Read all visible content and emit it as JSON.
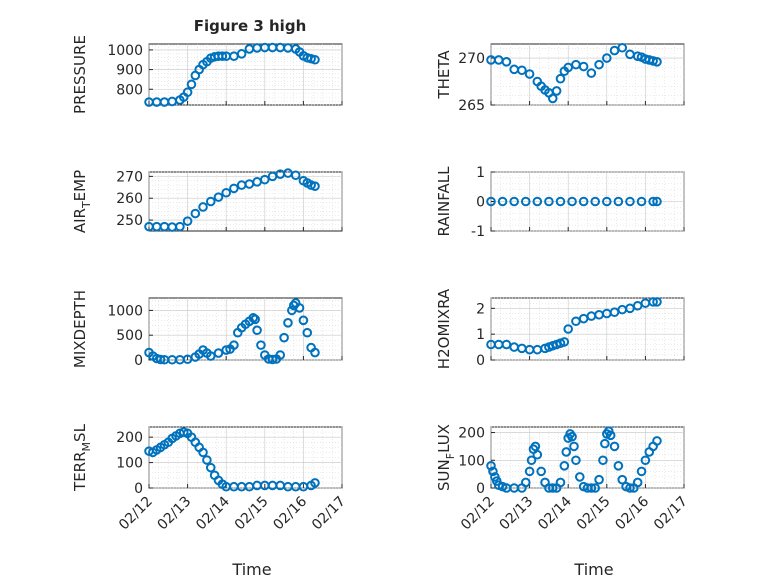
{
  "chart_data": {
    "type": "scatter",
    "title": "Figure 3 high",
    "layout": "4x2",
    "marker": "circle",
    "marker_color": "#0072BD",
    "x_ticks": [
      "02/12",
      "02/13",
      "02/14",
      "02/15",
      "02/16",
      "02/17"
    ],
    "xlim": [
      0,
      5
    ],
    "xlabel": "Time",
    "panels": [
      {
        "ylabel": "PRESSURE",
        "ylim": [
          720,
          1030
        ],
        "yticks": [
          800,
          900,
          1000
        ],
        "x": [
          0.0,
          0.2,
          0.4,
          0.6,
          0.8,
          0.9,
          1.0,
          1.1,
          1.2,
          1.3,
          1.4,
          1.5,
          1.6,
          1.7,
          1.8,
          1.9,
          2.0,
          2.2,
          2.4,
          2.6,
          2.8,
          3.0,
          3.2,
          3.4,
          3.6,
          3.8,
          3.9,
          4.0,
          4.1,
          4.2,
          4.3
        ],
        "values": [
          735,
          735,
          735,
          738,
          745,
          760,
          785,
          825,
          870,
          900,
          925,
          940,
          958,
          965,
          968,
          968,
          968,
          968,
          980,
          1005,
          1010,
          1012,
          1012,
          1012,
          1010,
          1005,
          990,
          970,
          960,
          955,
          950
        ]
      },
      {
        "ylabel": "THETA",
        "ylim": [
          265,
          271.5
        ],
        "yticks": [
          265,
          270
        ],
        "x": [
          0.0,
          0.2,
          0.4,
          0.6,
          0.8,
          1.0,
          1.2,
          1.3,
          1.4,
          1.5,
          1.6,
          1.7,
          1.8,
          1.9,
          2.0,
          2.2,
          2.4,
          2.6,
          2.8,
          3.0,
          3.2,
          3.4,
          3.6,
          3.8,
          3.9,
          4.0,
          4.1,
          4.2,
          4.3
        ],
        "values": [
          269.8,
          269.8,
          269.6,
          268.8,
          268.7,
          268.3,
          267.5,
          267.0,
          266.6,
          266.3,
          265.7,
          266.5,
          267.8,
          268.6,
          269.0,
          269.3,
          269.1,
          268.4,
          269.3,
          270.0,
          270.8,
          271.1,
          270.4,
          270.2,
          270.1,
          269.9,
          269.8,
          269.7,
          269.6
        ]
      },
      {
        "ylabel": "AIR_TEMP",
        "ylim": [
          245,
          272
        ],
        "yticks": [
          250,
          260,
          270
        ],
        "x": [
          0.0,
          0.2,
          0.4,
          0.6,
          0.8,
          1.0,
          1.2,
          1.4,
          1.6,
          1.8,
          2.0,
          2.2,
          2.4,
          2.6,
          2.8,
          3.0,
          3.2,
          3.4,
          3.6,
          3.8,
          4.0,
          4.1,
          4.2,
          4.3
        ],
        "values": [
          247,
          247,
          247,
          246.8,
          247,
          249.5,
          253,
          256,
          258.5,
          260.5,
          262.5,
          264.5,
          266,
          266.5,
          267.5,
          268.5,
          270,
          271,
          271.5,
          270.5,
          268,
          267,
          266,
          265.5
        ]
      },
      {
        "ylabel": "RAINFALL",
        "ylim": [
          -1,
          1
        ],
        "yticks": [
          -1,
          0,
          1
        ],
        "x": [
          0.0,
          0.3,
          0.6,
          0.9,
          1.2,
          1.5,
          1.8,
          2.1,
          2.4,
          2.7,
          3.0,
          3.3,
          3.6,
          3.9,
          4.2,
          4.3
        ],
        "values": [
          0,
          0,
          0,
          0,
          0,
          0,
          0,
          0,
          0,
          0,
          0,
          0,
          0,
          0,
          0,
          0
        ]
      },
      {
        "ylabel": "MIXDEPTH",
        "ylim": [
          0,
          1250
        ],
        "yticks": [
          0,
          500,
          1000
        ],
        "x": [
          0.0,
          0.1,
          0.2,
          0.3,
          0.4,
          0.6,
          0.8,
          1.0,
          1.2,
          1.3,
          1.4,
          1.5,
          1.6,
          1.8,
          2.0,
          2.1,
          2.2,
          2.3,
          2.4,
          2.5,
          2.6,
          2.7,
          2.75,
          2.8,
          2.9,
          3.0,
          3.1,
          3.2,
          3.3,
          3.4,
          3.5,
          3.6,
          3.7,
          3.75,
          3.8,
          3.9,
          4.0,
          4.1,
          4.2,
          4.3
        ],
        "values": [
          150,
          80,
          30,
          10,
          5,
          5,
          5,
          15,
          60,
          120,
          200,
          140,
          80,
          140,
          200,
          220,
          300,
          550,
          650,
          720,
          780,
          850,
          820,
          600,
          300,
          100,
          20,
          10,
          20,
          100,
          450,
          750,
          1000,
          1100,
          1150,
          1050,
          800,
          550,
          250,
          150
        ]
      },
      {
        "ylabel": "H2OMIXRA",
        "ylim": [
          0,
          2.4
        ],
        "yticks": [
          0,
          1,
          2
        ],
        "x": [
          0.0,
          0.2,
          0.4,
          0.6,
          0.8,
          1.0,
          1.2,
          1.4,
          1.5,
          1.6,
          1.7,
          1.8,
          1.9,
          2.0,
          2.2,
          2.4,
          2.6,
          2.8,
          3.0,
          3.2,
          3.4,
          3.6,
          3.8,
          4.0,
          4.2,
          4.3
        ],
        "values": [
          0.6,
          0.6,
          0.6,
          0.5,
          0.45,
          0.4,
          0.4,
          0.45,
          0.5,
          0.55,
          0.6,
          0.65,
          0.7,
          1.2,
          1.5,
          1.6,
          1.7,
          1.75,
          1.8,
          1.85,
          1.95,
          2.0,
          2.1,
          2.2,
          2.25,
          2.25
        ]
      },
      {
        "ylabel": "TERR_MSL",
        "ylim": [
          0,
          240
        ],
        "yticks": [
          0,
          100,
          200
        ],
        "x": [
          0.0,
          0.1,
          0.2,
          0.3,
          0.4,
          0.5,
          0.6,
          0.7,
          0.8,
          0.9,
          1.0,
          1.1,
          1.2,
          1.3,
          1.4,
          1.5,
          1.6,
          1.7,
          1.8,
          1.9,
          2.0,
          2.2,
          2.4,
          2.6,
          2.8,
          3.0,
          3.2,
          3.4,
          3.6,
          3.8,
          4.0,
          4.2,
          4.3
        ],
        "values": [
          145,
          140,
          150,
          160,
          170,
          180,
          195,
          205,
          215,
          220,
          215,
          200,
          180,
          160,
          140,
          110,
          80,
          50,
          30,
          15,
          5,
          5,
          5,
          5,
          10,
          10,
          10,
          10,
          5,
          5,
          5,
          10,
          20
        ]
      },
      {
        "ylabel": "SUN_FLUX",
        "ylim": [
          0,
          220
        ],
        "yticks": [
          0,
          100,
          200
        ],
        "x": [
          0.0,
          0.05,
          0.1,
          0.15,
          0.2,
          0.3,
          0.4,
          0.6,
          0.8,
          0.9,
          1.0,
          1.05,
          1.1,
          1.15,
          1.2,
          1.3,
          1.4,
          1.5,
          1.6,
          1.7,
          1.8,
          1.9,
          1.95,
          2.0,
          2.05,
          2.1,
          2.15,
          2.2,
          2.3,
          2.4,
          2.5,
          2.6,
          2.7,
          2.8,
          2.9,
          2.95,
          3.0,
          3.05,
          3.1,
          3.2,
          3.3,
          3.4,
          3.5,
          3.6,
          3.7,
          3.8,
          3.9,
          4.0,
          4.1,
          4.2,
          4.3
        ],
        "values": [
          80,
          60,
          40,
          25,
          10,
          5,
          0,
          0,
          0,
          20,
          60,
          100,
          140,
          150,
          120,
          60,
          20,
          0,
          0,
          0,
          20,
          80,
          130,
          180,
          195,
          185,
          150,
          100,
          40,
          5,
          0,
          0,
          0,
          30,
          100,
          160,
          195,
          205,
          190,
          150,
          80,
          30,
          5,
          0,
          0,
          20,
          60,
          100,
          130,
          150,
          170
        ]
      }
    ]
  }
}
